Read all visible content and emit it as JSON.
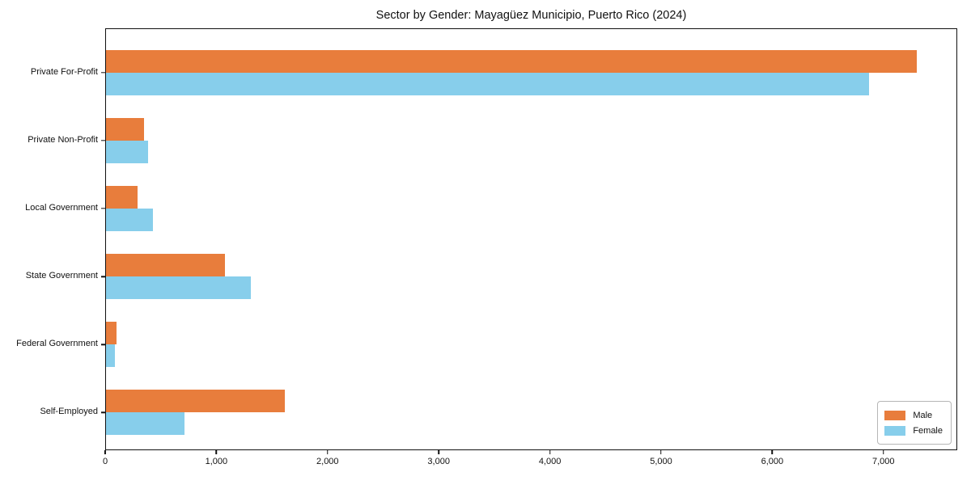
{
  "title": "Sector by Gender: Mayagüez Municipio, Puerto Rico (2024)",
  "chart_data": {
    "type": "bar",
    "orientation": "horizontal",
    "title": "Sector by Gender: Mayagüez Municipio, Puerto Rico (2024)",
    "xlabel": "",
    "ylabel": "",
    "categories": [
      "Private For-Profit",
      "Private Non-Profit",
      "Local Government",
      "State Government",
      "Federal Government",
      "Self-Employed"
    ],
    "series": [
      {
        "name": "Male",
        "color": "#E87D3C",
        "values": [
          7310,
          340,
          285,
          1075,
          95,
          1610
        ]
      },
      {
        "name": "Female",
        "color": "#87CEEB",
        "values": [
          6880,
          380,
          425,
          1305,
          80,
          710
        ]
      }
    ],
    "xlim": [
      0,
      7664
    ],
    "xticks": [
      0,
      1000,
      2000,
      3000,
      4000,
      5000,
      6000,
      7000
    ],
    "xtick_labels": [
      "0",
      "1,000",
      "2,000",
      "3,000",
      "4,000",
      "5,000",
      "6,000",
      "7,000"
    ],
    "grid": false,
    "legend_position": "lower right"
  },
  "legend": {
    "items": [
      {
        "label": "Male",
        "color": "#E87D3C"
      },
      {
        "label": "Female",
        "color": "#87CEEB"
      }
    ]
  }
}
